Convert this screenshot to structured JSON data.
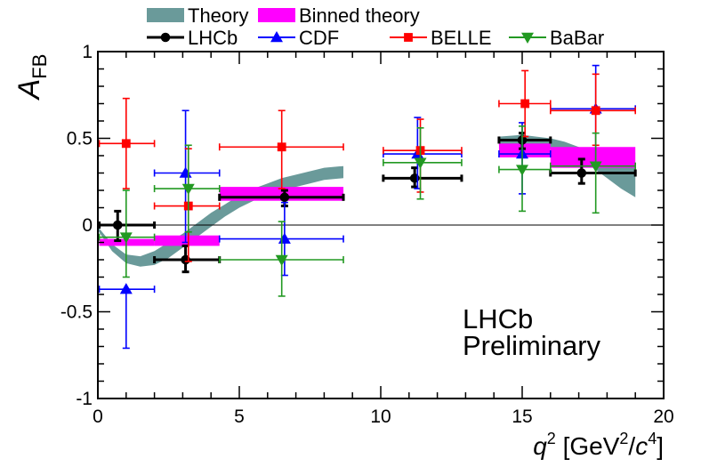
{
  "chart_data": {
    "type": "scatter",
    "title": "",
    "xlabel_var": "q",
    "xlabel_pow": "2",
    "xlabel_unit_open": "[GeV",
    "xlabel_unit_pow1": "2",
    "xlabel_unit_slash": "/",
    "xlabel_unit_c": "c",
    "xlabel_unit_pow2": "4",
    "xlabel_unit_close": "]",
    "ylabel_main": "A",
    "ylabel_sub": "FB",
    "xlim": [
      0,
      20
    ],
    "ylim": [
      -1,
      1
    ],
    "x_ticks": [
      0,
      5,
      10,
      15,
      20
    ],
    "x_tick_labels": [
      "0",
      "5",
      "10",
      "15",
      "20"
    ],
    "y_ticks": [
      -1,
      -0.5,
      0,
      0.5,
      1
    ],
    "y_tick_labels": [
      "-1",
      "-0.5",
      "0",
      "0.5",
      "1"
    ],
    "annotation_line1": "LHCb",
    "annotation_line2": "Preliminary",
    "colors": {
      "theory": "#6a9a9a",
      "binned": "#ff00ff",
      "lhcb": "#000000",
      "cdf": "#0000ff",
      "belle": "#ff0000",
      "babar": "#229922"
    },
    "legend": [
      {
        "key": "theory",
        "label": "Theory"
      },
      {
        "key": "binned",
        "label": "Binned theory"
      },
      {
        "key": "lhcb",
        "label": "LHCb"
      },
      {
        "key": "cdf",
        "label": "CDF"
      },
      {
        "key": "belle",
        "label": "BELLE"
      },
      {
        "key": "babar",
        "label": "BaBar"
      }
    ],
    "theory_band": {
      "x": [
        0.0,
        0.5,
        1.0,
        1.5,
        2.0,
        2.5,
        3.0,
        3.5,
        4.0,
        4.5,
        5.0,
        5.5,
        6.0,
        6.5,
        7.0,
        7.5,
        8.0,
        8.68
      ],
      "lo": [
        -0.03,
        -0.15,
        -0.22,
        -0.24,
        -0.23,
        -0.19,
        -0.13,
        -0.07,
        -0.01,
        0.05,
        0.1,
        0.14,
        0.17,
        0.2,
        0.22,
        0.24,
        0.26,
        0.27
      ],
      "hi": [
        -0.01,
        -0.11,
        -0.17,
        -0.18,
        -0.15,
        -0.1,
        -0.05,
        0.01,
        0.07,
        0.12,
        0.17,
        0.21,
        0.24,
        0.27,
        0.29,
        0.31,
        0.33,
        0.34
      ],
      "x2": [
        14.18,
        15.0,
        15.5,
        16.0,
        16.5,
        17.0,
        17.5,
        18.0,
        18.5,
        19.0
      ],
      "lo2": [
        0.46,
        0.47,
        0.46,
        0.44,
        0.41,
        0.37,
        0.33,
        0.27,
        0.21,
        0.16
      ],
      "hi2": [
        0.51,
        0.52,
        0.51,
        0.5,
        0.48,
        0.45,
        0.42,
        0.39,
        0.36,
        0.33
      ]
    },
    "binned_theory": [
      {
        "xmin": 0.05,
        "xmax": 2.0,
        "lo": -0.12,
        "hi": -0.08
      },
      {
        "xmin": 2.0,
        "xmax": 4.3,
        "lo": -0.12,
        "hi": -0.06
      },
      {
        "xmin": 4.3,
        "xmax": 8.68,
        "lo": 0.14,
        "hi": 0.22
      },
      {
        "xmin": 14.18,
        "xmax": 16.0,
        "lo": 0.39,
        "hi": 0.47
      },
      {
        "xmin": 16.0,
        "xmax": 19.0,
        "lo": 0.33,
        "hi": 0.45
      }
    ],
    "series": [
      {
        "name": "LHCb",
        "key": "lhcb",
        "marker": "circle",
        "points": [
          {
            "x": 0.7,
            "y": 0.0,
            "xlo": 0.05,
            "xhi": 2.0,
            "ylo": -0.09,
            "yhi": 0.08
          },
          {
            "x": 3.1,
            "y": -0.2,
            "xlo": 2.0,
            "xhi": 4.3,
            "ylo": -0.27,
            "yhi": -0.12
          },
          {
            "x": 6.6,
            "y": 0.16,
            "xlo": 4.3,
            "xhi": 8.68,
            "ylo": 0.11,
            "yhi": 0.2
          },
          {
            "x": 11.2,
            "y": 0.27,
            "xlo": 10.09,
            "xhi": 12.86,
            "ylo": 0.22,
            "yhi": 0.33
          },
          {
            "x": 15.0,
            "y": 0.49,
            "xlo": 14.18,
            "xhi": 16.0,
            "ylo": 0.44,
            "yhi": 0.53
          },
          {
            "x": 17.1,
            "y": 0.3,
            "xlo": 16.0,
            "xhi": 19.0,
            "ylo": 0.24,
            "yhi": 0.38
          }
        ]
      },
      {
        "name": "CDF",
        "key": "cdf",
        "marker": "triangle-up",
        "points": [
          {
            "x": 1.0,
            "y": -0.37,
            "xlo": 0.05,
            "xhi": 2.0,
            "ylo": -0.71,
            "yhi": -0.37
          },
          {
            "x": 3.1,
            "y": 0.3,
            "xlo": 2.0,
            "xhi": 4.3,
            "ylo": -0.1,
            "yhi": 0.66
          },
          {
            "x": 6.6,
            "y": -0.08,
            "xlo": 4.3,
            "xhi": 8.68,
            "ylo": -0.29,
            "yhi": 0.13
          },
          {
            "x": 11.3,
            "y": 0.41,
            "xlo": 10.09,
            "xhi": 12.86,
            "ylo": 0.21,
            "yhi": 0.62
          },
          {
            "x": 15.0,
            "y": 0.41,
            "xlo": 14.18,
            "xhi": 16.0,
            "ylo": 0.18,
            "yhi": 0.59
          },
          {
            "x": 17.6,
            "y": 0.67,
            "xlo": 16.0,
            "xhi": 19.0,
            "ylo": 0.35,
            "yhi": 0.92
          }
        ]
      },
      {
        "name": "BELLE",
        "key": "belle",
        "marker": "square",
        "points": [
          {
            "x": 1.0,
            "y": 0.47,
            "xlo": 0.05,
            "xhi": 2.0,
            "ylo": 0.21,
            "yhi": 0.73
          },
          {
            "x": 3.2,
            "y": 0.11,
            "xlo": 2.0,
            "xhi": 4.3,
            "ylo": -0.21,
            "yhi": 0.44
          },
          {
            "x": 6.5,
            "y": 0.45,
            "xlo": 4.3,
            "xhi": 8.68,
            "ylo": 0.21,
            "yhi": 0.66
          },
          {
            "x": 11.4,
            "y": 0.43,
            "xlo": 10.09,
            "xhi": 12.86,
            "ylo": 0.19,
            "yhi": 0.61
          },
          {
            "x": 15.1,
            "y": 0.7,
            "xlo": 14.18,
            "xhi": 16.0,
            "ylo": 0.51,
            "yhi": 0.89
          },
          {
            "x": 17.6,
            "y": 0.66,
            "xlo": 16.0,
            "xhi": 19.0,
            "ylo": 0.46,
            "yhi": 0.87
          }
        ]
      },
      {
        "name": "BaBar",
        "key": "babar",
        "marker": "triangle-down",
        "points": [
          {
            "x": 1.0,
            "y": -0.07,
            "xlo": 0.05,
            "xhi": 2.0,
            "ylo": -0.3,
            "yhi": 0.2
          },
          {
            "x": 3.2,
            "y": 0.21,
            "xlo": 2.0,
            "xhi": 4.3,
            "ylo": -0.04,
            "yhi": 0.46
          },
          {
            "x": 6.5,
            "y": -0.2,
            "xlo": 4.3,
            "xhi": 8.68,
            "ylo": -0.41,
            "yhi": 0.02
          },
          {
            "x": 11.4,
            "y": 0.36,
            "xlo": 10.09,
            "xhi": 12.86,
            "ylo": 0.15,
            "yhi": 0.56
          },
          {
            "x": 15.0,
            "y": 0.32,
            "xlo": 14.18,
            "xhi": 16.0,
            "ylo": 0.08,
            "yhi": 0.57
          },
          {
            "x": 17.6,
            "y": 0.34,
            "xlo": 16.0,
            "xhi": 19.0,
            "ylo": 0.07,
            "yhi": 0.53
          }
        ]
      }
    ]
  }
}
